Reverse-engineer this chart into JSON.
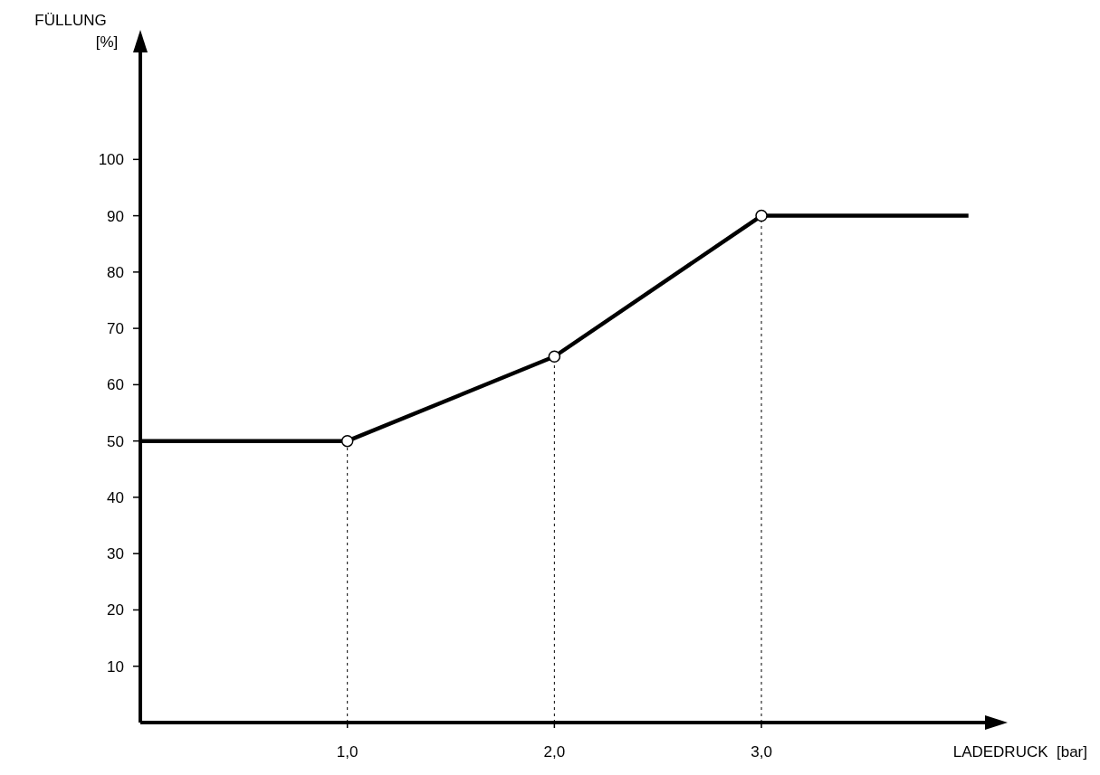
{
  "chart_data": {
    "type": "line",
    "xlabel": "LADEDRUCK  [bar]",
    "ylabel": "FÜLLUNG\n[%]",
    "xlim": [
      0,
      4.08
    ],
    "ylim": [
      0,
      119
    ],
    "xticks": [
      {
        "value": 1,
        "label": "1,0"
      },
      {
        "value": 2,
        "label": "2,0"
      },
      {
        "value": 3,
        "label": "3,0"
      }
    ],
    "yticks": [
      10,
      20,
      30,
      40,
      50,
      60,
      70,
      80,
      90,
      100
    ],
    "series": [
      {
        "color": "#000000",
        "x": [
          0,
          1,
          2,
          3,
          4
        ],
        "values": [
          50,
          50,
          65,
          90,
          90
        ],
        "marker": "none",
        "line_style": "solid"
      },
      {
        "type": "scatter",
        "color": "#000000",
        "x": [
          1,
          2,
          3
        ],
        "values": [
          50,
          65,
          90
        ],
        "marker": "circle"
      }
    ],
    "ref_lines": [
      {
        "axis": "x",
        "value": 1,
        "color": "#000000",
        "line_style": "dotted"
      },
      {
        "axis": "x",
        "value": 2,
        "color": "#000000",
        "line_style": "dotted"
      },
      {
        "axis": "x",
        "value": 3,
        "color": "#000000",
        "line_style": "dotted"
      }
    ],
    "grid": false
  }
}
